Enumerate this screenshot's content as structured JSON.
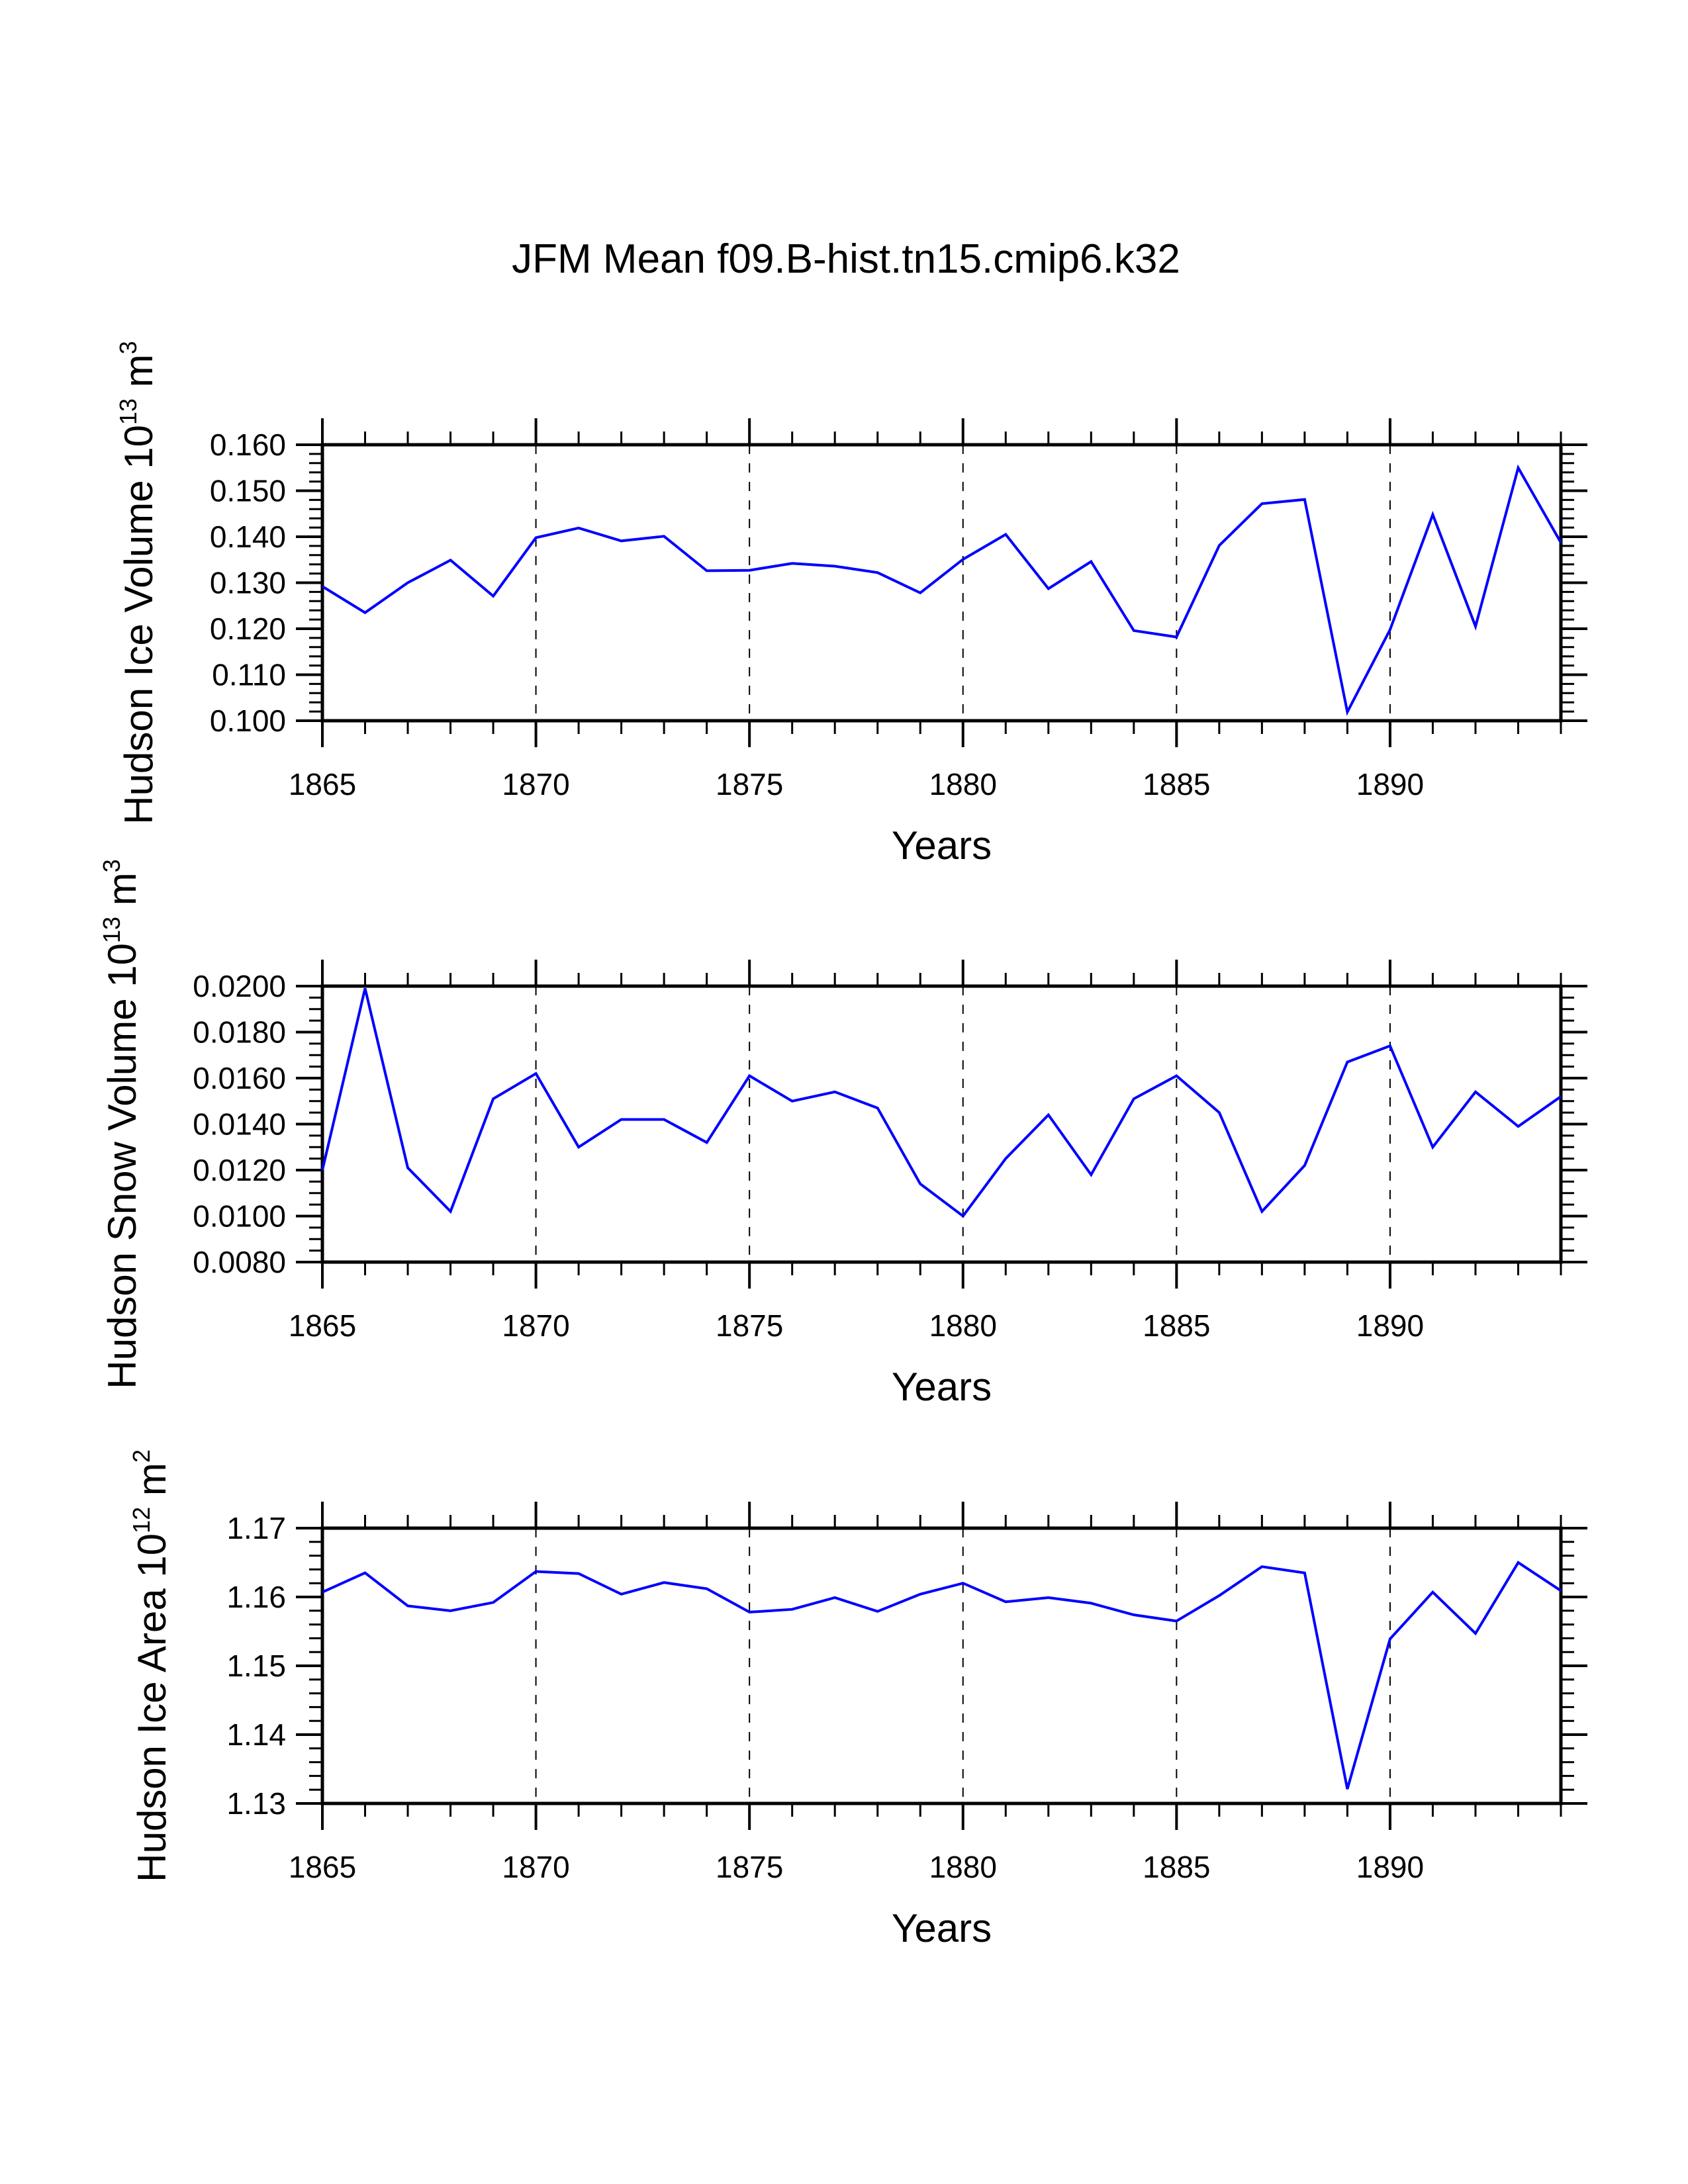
{
  "title": "JFM Mean f09.B-hist.tn15.cmip6.k32",
  "line_color": "#0000ff",
  "chart_data": [
    {
      "type": "line",
      "name": "ice-volume",
      "title": "JFM Mean f09.B-hist.tn15.cmip6.k32",
      "ylabel": "Hudson Ice Volume 10",
      "ylabel_exponent": "13",
      "ylabel_unit": " m",
      "ylabel_unit_exponent": "3",
      "xlabel": "Years",
      "xlim": [
        1865,
        1894
      ],
      "ylim": [
        0.1,
        0.16
      ],
      "xticks": [
        1865,
        1870,
        1875,
        1880,
        1885,
        1890
      ],
      "xtick_labels": [
        "1865",
        "1870",
        "1875",
        "1880",
        "1885",
        "1890"
      ],
      "yticks": [
        0.1,
        0.11,
        0.12,
        0.13,
        0.14,
        0.15,
        0.16
      ],
      "ytick_labels": [
        "0.100",
        "0.110",
        "0.120",
        "0.130",
        "0.140",
        "0.150",
        "0.160"
      ],
      "yminor_step": 0.002,
      "grid": "vertical dashed at major x ticks",
      "x": [
        1865,
        1866,
        1867,
        1868,
        1869,
        1870,
        1871,
        1872,
        1873,
        1874,
        1875,
        1876,
        1877,
        1878,
        1879,
        1880,
        1881,
        1882,
        1883,
        1884,
        1885,
        1886,
        1887,
        1888,
        1889,
        1890,
        1891,
        1892,
        1893,
        1894
      ],
      "series": [
        {
          "name": "Hudson Ice Volume",
          "values": [
            0.1292,
            0.1235,
            0.13,
            0.1349,
            0.1271,
            0.1398,
            0.1419,
            0.1391,
            0.1401,
            0.1326,
            0.1327,
            0.1342,
            0.1336,
            0.1322,
            0.1278,
            0.1351,
            0.1405,
            0.1287,
            0.1346,
            0.1196,
            0.1182,
            0.1381,
            0.1472,
            0.1481,
            0.1019,
            0.1198,
            0.1448,
            0.1205,
            0.155,
            0.1387
          ]
        }
      ]
    },
    {
      "type": "line",
      "name": "snow-volume",
      "ylabel": "Hudson Snow Volume 10",
      "ylabel_exponent": "13",
      "ylabel_unit": " m",
      "ylabel_unit_exponent": "3",
      "xlabel": "Years",
      "xlim": [
        1865,
        1894
      ],
      "ylim": [
        0.008,
        0.02
      ],
      "xticks": [
        1865,
        1870,
        1875,
        1880,
        1885,
        1890
      ],
      "xtick_labels": [
        "1865",
        "1870",
        "1875",
        "1880",
        "1885",
        "1890"
      ],
      "yticks": [
        0.008,
        0.01,
        0.012,
        0.014,
        0.016,
        0.018,
        0.02
      ],
      "ytick_labels": [
        "0.0080",
        "0.0100",
        "0.0120",
        "0.0140",
        "0.0160",
        "0.0180",
        "0.0200"
      ],
      "yminor_step": 0.0005,
      "grid": "vertical dashed at major x ticks",
      "x": [
        1865,
        1866,
        1867,
        1868,
        1869,
        1870,
        1871,
        1872,
        1873,
        1874,
        1875,
        1876,
        1877,
        1878,
        1879,
        1880,
        1881,
        1882,
        1883,
        1884,
        1885,
        1886,
        1887,
        1888,
        1889,
        1890,
        1891,
        1892,
        1893,
        1894
      ],
      "series": [
        {
          "name": "Hudson Snow Volume",
          "values": [
            0.012,
            0.0199,
            0.0121,
            0.0102,
            0.0151,
            0.0162,
            0.013,
            0.0142,
            0.0142,
            0.0132,
            0.0161,
            0.015,
            0.0154,
            0.0147,
            0.0114,
            0.01,
            0.0125,
            0.0144,
            0.0118,
            0.0151,
            0.0161,
            0.0145,
            0.0102,
            0.0122,
            0.0167,
            0.0174,
            0.013,
            0.0154,
            0.0139,
            0.0152
          ]
        }
      ]
    },
    {
      "type": "line",
      "name": "ice-area",
      "ylabel": "Hudson Ice Area 10",
      "ylabel_exponent": "12",
      "ylabel_unit": " m",
      "ylabel_unit_exponent": "2",
      "xlabel": "Years",
      "xlim": [
        1865,
        1894
      ],
      "ylim": [
        1.13,
        1.17
      ],
      "xticks": [
        1865,
        1870,
        1875,
        1880,
        1885,
        1890
      ],
      "xtick_labels": [
        "1865",
        "1870",
        "1875",
        "1880",
        "1885",
        "1890"
      ],
      "yticks": [
        1.13,
        1.14,
        1.15,
        1.16,
        1.17
      ],
      "ytick_labels": [
        "1.13",
        "1.14",
        "1.15",
        "1.16",
        "1.17"
      ],
      "yminor_step": 0.002,
      "grid": "vertical dashed at major x ticks",
      "x": [
        1865,
        1866,
        1867,
        1868,
        1869,
        1870,
        1871,
        1872,
        1873,
        1874,
        1875,
        1876,
        1877,
        1878,
        1879,
        1880,
        1881,
        1882,
        1883,
        1884,
        1885,
        1886,
        1887,
        1888,
        1889,
        1890,
        1891,
        1892,
        1893,
        1894
      ],
      "series": [
        {
          "name": "Hudson Ice Area",
          "values": [
            1.1607,
            1.1635,
            1.1587,
            1.158,
            1.1592,
            1.1637,
            1.1634,
            1.1604,
            1.1621,
            1.1612,
            1.1578,
            1.1582,
            1.1599,
            1.1579,
            1.1604,
            1.162,
            1.1593,
            1.1599,
            1.1591,
            1.1574,
            1.1565,
            1.1602,
            1.1644,
            1.1635,
            1.1321,
            1.1539,
            1.1607,
            1.1547,
            1.165,
            1.1609
          ]
        }
      ]
    }
  ]
}
